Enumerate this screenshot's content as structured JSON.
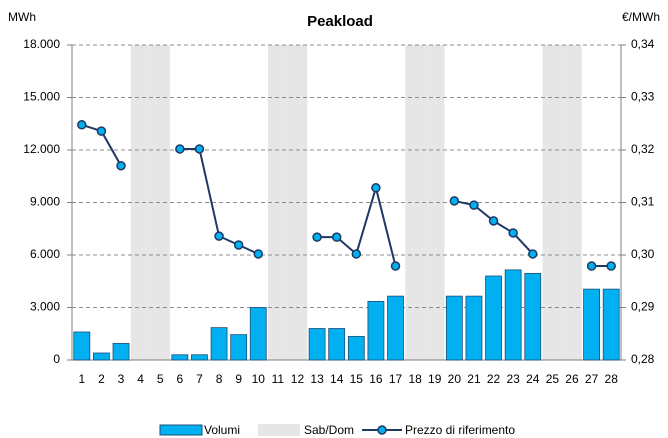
{
  "chart_data": {
    "type": "bar-line",
    "title": "Peakload",
    "ylabel": "MWh",
    "y2label": "€/MWh",
    "categories": [
      "1",
      "2",
      "3",
      "4",
      "5",
      "6",
      "7",
      "8",
      "9",
      "10",
      "11",
      "12",
      "13",
      "14",
      "15",
      "16",
      "17",
      "18",
      "19",
      "20",
      "21",
      "22",
      "23",
      "24",
      "25",
      "26",
      "27",
      "28"
    ],
    "series": [
      {
        "name": "Volumi",
        "type": "bar",
        "color": "#00b0f0",
        "values": [
          1600,
          400,
          950,
          null,
          null,
          300,
          300,
          1850,
          1450,
          3000,
          null,
          null,
          1800,
          1800,
          1350,
          3350,
          3650,
          null,
          null,
          3650,
          3650,
          4800,
          5150,
          4950,
          null,
          null,
          4050,
          4050
        ]
      },
      {
        "name": "Sab/Dom",
        "type": "band",
        "color": "#e6e6e6",
        "values": [
          null,
          null,
          null,
          18000,
          18000,
          null,
          null,
          null,
          null,
          null,
          18000,
          18000,
          null,
          null,
          null,
          null,
          null,
          18000,
          18000,
          null,
          null,
          null,
          null,
          null,
          18000,
          18000,
          null,
          null
        ]
      },
      {
        "name": "Prezzo di riferimento",
        "type": "line",
        "axis": "y2",
        "color": "#1f3864",
        "marker_color": "#00b0f0",
        "values": [
          0.3248,
          0.3236,
          0.317,
          null,
          null,
          0.3202,
          0.3202,
          0.3036,
          0.3019,
          0.3002,
          null,
          null,
          0.3034,
          0.3034,
          0.3002,
          0.3128,
          0.2979,
          null,
          null,
          0.3103,
          0.3095,
          0.3065,
          0.3042,
          0.3002,
          null,
          null,
          0.2979,
          0.2979
        ]
      }
    ],
    "ylim": [
      0,
      18000
    ],
    "yticks": [
      0,
      {
        "value": 3000,
        "label": "3.000"
      },
      {
        "value": 6000,
        "label": "6.000"
      },
      {
        "value": 9000,
        "label": "9.000"
      },
      {
        "value": 12000,
        "label": "12.000"
      },
      {
        "value": 15000,
        "label": "15.000"
      },
      {
        "value": 18000,
        "label": "18.000"
      }
    ],
    "y2lim": [
      0.28,
      0.34
    ],
    "y2ticks": [
      {
        "value": 0.28,
        "label": "0,28"
      },
      {
        "value": 0.29,
        "label": "0,29"
      },
      {
        "value": 0.3,
        "label": "0,30"
      },
      {
        "value": 0.31,
        "label": "0,31"
      },
      {
        "value": 0.32,
        "label": "0,32"
      },
      {
        "value": 0.33,
        "label": "0,33"
      },
      {
        "value": 0.34,
        "label": "0,34"
      }
    ],
    "grid": true
  }
}
